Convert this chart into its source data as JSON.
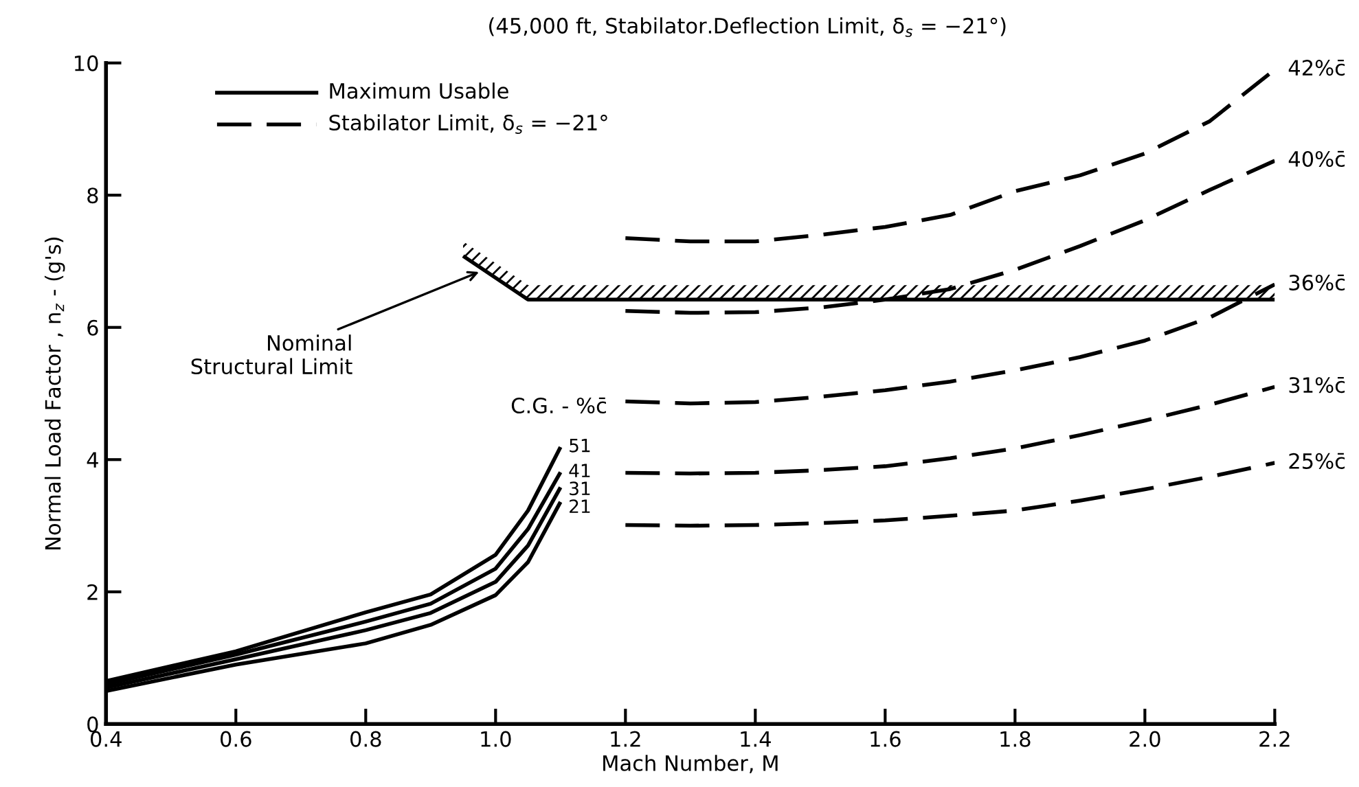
{
  "chart_data": {
    "type": "line",
    "subtitle": "(45,000 ft, Stabilator.Deflection Limit, δ$_{s}$ = −21°)",
    "xlabel": "Mach Number, M",
    "ylabel": "Normal Load Factor , n$_{z}$ - (g's)",
    "xlim": [
      0.4,
      2.2
    ],
    "ylim": [
      0,
      10
    ],
    "xticks": [
      {
        "value": 0.4,
        "label": "0.4"
      },
      {
        "value": 0.6,
        "label": "0.6"
      },
      {
        "value": 0.8,
        "label": "0.8"
      },
      {
        "value": 1.0,
        "label": "1.0"
      },
      {
        "value": 1.2,
        "label": "1.2"
      },
      {
        "value": 1.4,
        "label": "1.4"
      },
      {
        "value": 1.6,
        "label": "1.6"
      },
      {
        "value": 1.8,
        "label": "1.8"
      },
      {
        "value": 2.0,
        "label": "2.0"
      },
      {
        "value": 2.2,
        "label": "2.2"
      }
    ],
    "yticks": [
      0,
      2,
      4,
      6,
      8,
      10
    ],
    "grid": false,
    "series": [
      {
        "name": "51",
        "color": "#000000",
        "line_style": "solid",
        "x": [
          0.4,
          0.6,
          0.8,
          0.9,
          1.0,
          1.05,
          1.1
        ],
        "values": [
          0.65,
          1.1,
          1.69,
          1.96,
          2.56,
          3.23,
          4.19
        ]
      },
      {
        "name": "41",
        "color": "#000000",
        "line_style": "solid",
        "x": [
          0.4,
          0.6,
          0.8,
          0.9,
          1.0,
          1.05,
          1.1
        ],
        "values": [
          0.6,
          1.05,
          1.55,
          1.82,
          2.35,
          2.95,
          3.81
        ]
      },
      {
        "name": "31",
        "color": "#000000",
        "line_style": "solid",
        "x": [
          0.4,
          0.6,
          0.8,
          0.9,
          1.0,
          1.05,
          1.1
        ],
        "values": [
          0.55,
          0.98,
          1.42,
          1.68,
          2.15,
          2.7,
          3.58
        ]
      },
      {
        "name": "21",
        "color": "#000000",
        "line_style": "solid",
        "x": [
          0.4,
          0.6,
          0.8,
          0.9,
          1.0,
          1.05,
          1.1
        ],
        "values": [
          0.5,
          0.9,
          1.22,
          1.5,
          1.95,
          2.45,
          3.36
        ]
      },
      {
        "name": "42%c̄",
        "color": "#000000",
        "line_style": "dashed",
        "x": [
          1.2,
          1.3,
          1.4,
          1.5,
          1.6,
          1.7,
          1.8,
          1.9,
          2.0,
          2.1,
          2.2
        ],
        "values": [
          7.35,
          7.3,
          7.3,
          7.4,
          7.52,
          7.7,
          8.06,
          8.3,
          8.63,
          9.12,
          9.9
        ]
      },
      {
        "name": "40%c̄",
        "color": "#000000",
        "line_style": "dashed",
        "x": [
          1.2,
          1.3,
          1.4,
          1.5,
          1.6,
          1.7,
          1.8,
          1.9,
          2.0,
          2.1,
          2.2
        ],
        "values": [
          6.25,
          6.22,
          6.23,
          6.3,
          6.42,
          6.58,
          6.87,
          7.23,
          7.62,
          8.08,
          8.52
        ]
      },
      {
        "name": "36%c̄",
        "color": "#000000",
        "line_style": "dashed",
        "x": [
          1.2,
          1.3,
          1.4,
          1.5,
          1.6,
          1.7,
          1.8,
          1.9,
          2.0,
          2.1,
          2.2
        ],
        "values": [
          4.88,
          4.85,
          4.87,
          4.95,
          5.05,
          5.18,
          5.35,
          5.55,
          5.8,
          6.15,
          6.65
        ]
      },
      {
        "name": "31%c̄",
        "color": "#000000",
        "line_style": "dashed",
        "x": [
          1.2,
          1.3,
          1.4,
          1.5,
          1.6,
          1.7,
          1.8,
          1.9,
          2.0,
          2.1,
          2.2
        ],
        "values": [
          3.8,
          3.79,
          3.8,
          3.84,
          3.9,
          4.02,
          4.17,
          4.37,
          4.59,
          4.83,
          5.1
        ]
      },
      {
        "name": "25%c̄",
        "color": "#000000",
        "line_style": "dashed",
        "x": [
          1.2,
          1.3,
          1.4,
          1.5,
          1.6,
          1.7,
          1.8,
          1.9,
          2.0,
          2.1,
          2.2
        ],
        "values": [
          3.01,
          3.0,
          3.01,
          3.04,
          3.08,
          3.15,
          3.23,
          3.38,
          3.55,
          3.74,
          3.95
        ]
      },
      {
        "color": "#000000",
        "line_style": "solid",
        "x": [
          0.95,
          1.05,
          2.2
        ],
        "values": [
          7.08,
          6.42,
          6.42
        ]
      }
    ],
    "annotations": [
      "Maximum Usable",
      "Stabilator Limit, δ$_{s}$ = −21°",
      "C.G. - %c̄",
      {
        "text": "Nominal\nStructural Limit",
        "x": 0.98,
        "y": 6.86
      }
    ]
  }
}
